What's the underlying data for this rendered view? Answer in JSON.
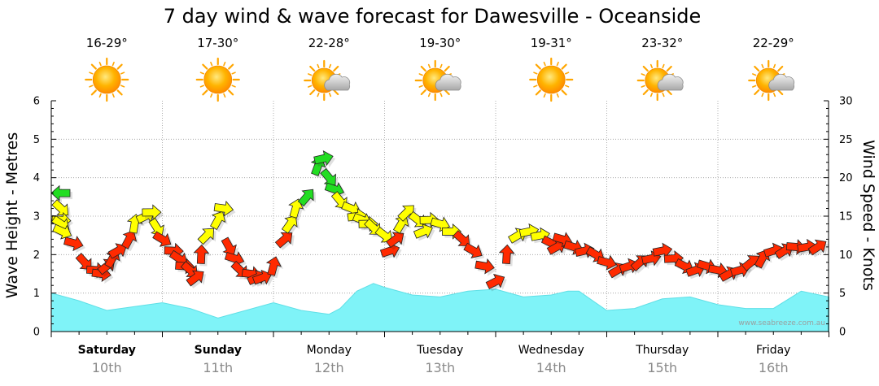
{
  "chart_data": {
    "type": "line",
    "title": "7 day wind & wave forecast for Dawesville - Oceanside",
    "ylabel_left": "Wave Height - Metres",
    "ylabel_right": "Wind Speed - Knots",
    "ylim_left": [
      0,
      6
    ],
    "ylim_right": [
      0,
      30
    ],
    "yticks_left": [
      "0",
      "1",
      "2",
      "3",
      "4",
      "5",
      "6"
    ],
    "yticks_right": [
      "0",
      "5",
      "10",
      "15",
      "20",
      "25",
      "30"
    ],
    "days": [
      {
        "name": "Saturday",
        "date": "10th",
        "temp": "16-29°",
        "icon": "sun-icon",
        "bold": true
      },
      {
        "name": "Sunday",
        "date": "11th",
        "temp": "17-30°",
        "icon": "sun-icon",
        "bold": true
      },
      {
        "name": "Monday",
        "date": "12th",
        "temp": "22-28°",
        "icon": "sun-cloud-icon",
        "bold": false
      },
      {
        "name": "Tuesday",
        "date": "13th",
        "temp": "19-30°",
        "icon": "sun-cloud-icon",
        "bold": false
      },
      {
        "name": "Wednesday",
        "date": "14th",
        "temp": "19-31°",
        "icon": "sun-icon",
        "bold": false
      },
      {
        "name": "Thursday",
        "date": "15th",
        "temp": "23-32°",
        "icon": "sun-cloud-icon",
        "bold": false
      },
      {
        "name": "Friday",
        "date": "16th",
        "temp": "22-29°",
        "icon": "sun-cloud-icon",
        "bold": false
      }
    ],
    "wave_series": {
      "name": "Wave Height",
      "unit": "m",
      "x_days": [
        0,
        0.25,
        0.5,
        0.75,
        1.0,
        1.25,
        1.5,
        1.75,
        2.0,
        2.25,
        2.5,
        2.6,
        2.75,
        2.9,
        3.0,
        3.25,
        3.5,
        3.75,
        4.0,
        4.25,
        4.5,
        4.65,
        4.75,
        4.85,
        5.0,
        5.25,
        5.5,
        5.75,
        6.0,
        6.25,
        6.5,
        6.75,
        7.0
      ],
      "values": [
        1.0,
        0.8,
        0.55,
        0.65,
        0.75,
        0.6,
        0.35,
        0.55,
        0.75,
        0.55,
        0.45,
        0.6,
        1.05,
        1.25,
        1.15,
        0.95,
        0.9,
        1.05,
        1.1,
        0.9,
        0.95,
        1.05,
        1.05,
        0.85,
        0.55,
        0.6,
        0.85,
        0.9,
        0.7,
        0.6,
        0.6,
        1.05,
        0.9
      ]
    },
    "wind_series": {
      "name": "Wind Speed",
      "unit": "kn",
      "x_days": [
        -0.25,
        -0.2,
        -0.1,
        0.0,
        0.1,
        0.2,
        0.3,
        0.4,
        0.45,
        0.5,
        0.55,
        0.6,
        0.7,
        0.75,
        0.85,
        0.9,
        0.95,
        1.0,
        1.1,
        1.15,
        1.2,
        1.25,
        1.3,
        1.35,
        1.4,
        1.5,
        1.55,
        1.6,
        1.65,
        1.7,
        1.8,
        1.85,
        1.9,
        2.0,
        2.1,
        2.15,
        2.2,
        2.3,
        2.4,
        2.45,
        2.5,
        2.55,
        2.6,
        2.7,
        2.75,
        2.8,
        2.85,
        2.9,
        3.0,
        3.05,
        3.1,
        3.15,
        3.2,
        3.3,
        3.35,
        3.4,
        3.5,
        3.6,
        3.7,
        3.8,
        3.9,
        4.0,
        4.1,
        4.2,
        4.3,
        4.4,
        4.5,
        4.55,
        4.6,
        4.7,
        4.8,
        4.9,
        5.0,
        5.1,
        5.2,
        5.3,
        5.4,
        5.5,
        5.6,
        5.7,
        5.8,
        5.9,
        6.0,
        6.1,
        6.2,
        6.3,
        6.4,
        6.5,
        6.6,
        6.7,
        6.8,
        6.9
      ],
      "values": [
        18,
        16,
        14.5,
        14,
        13,
        11.5,
        9,
        8,
        7.5,
        8.5,
        9.5,
        10.5,
        12,
        14,
        15,
        15.5,
        13.5,
        12,
        10.5,
        9.5,
        8.5,
        8,
        7,
        10,
        12.5,
        14.5,
        16,
        11,
        9.5,
        8,
        7.5,
        7,
        7,
        8.5,
        12,
        14,
        16,
        17.5,
        21.5,
        22.5,
        20,
        18.5,
        17,
        16,
        15,
        14.5,
        14,
        13.5,
        12.5,
        10.5,
        12,
        14,
        15.5,
        14.5,
        13,
        14.5,
        14,
        13,
        12,
        10.5,
        8.5,
        6.5,
        10,
        12.5,
        13,
        12.5,
        11.5,
        11,
        12,
        11,
        10.5,
        10,
        9,
        8,
        8.5,
        9,
        9.5,
        10.5,
        9.5,
        8.5,
        8,
        8.5,
        8,
        7.5,
        8,
        9,
        9.5,
        10.5,
        10.5,
        11,
        11,
        11
      ]
    },
    "wind_colors": {
      "light": "#ff2a00",
      "moderate": "#ffff00",
      "strong": "#22dd22"
    },
    "wave_color": "#7ff3f8",
    "watermark": "www.seabreeze.com.au",
    "grid": true
  }
}
